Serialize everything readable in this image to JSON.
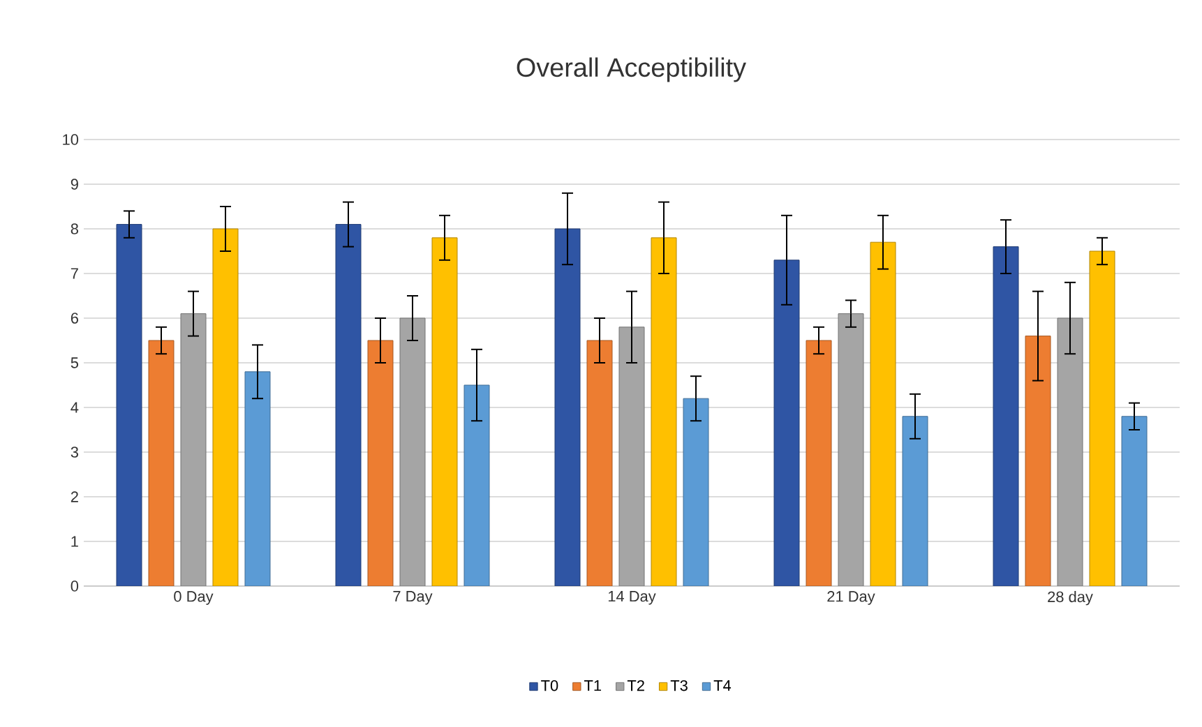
{
  "chart_data": {
    "type": "bar",
    "title": "Overall Acceptibility",
    "categories": [
      "0 Day",
      "7 Day",
      "14 Day",
      "21 Day",
      "28 day"
    ],
    "series": [
      {
        "name": "T0",
        "color": "#2f55a4",
        "values": [
          8.1,
          8.1,
          8.0,
          7.3,
          7.6
        ],
        "errors": [
          0.3,
          0.5,
          0.8,
          1.0,
          0.6
        ]
      },
      {
        "name": "T1",
        "color": "#ed7d31",
        "values": [
          5.5,
          5.5,
          5.5,
          5.5,
          5.6
        ],
        "errors": [
          0.3,
          0.5,
          0.5,
          0.3,
          1.0
        ]
      },
      {
        "name": "T2",
        "color": "#a5a5a5",
        "values": [
          6.1,
          6.0,
          5.8,
          6.1,
          6.0
        ],
        "errors": [
          0.5,
          0.5,
          0.8,
          0.3,
          0.8
        ]
      },
      {
        "name": "T3",
        "color": "#ffc000",
        "values": [
          8.0,
          7.8,
          7.8,
          7.7,
          7.5
        ],
        "errors": [
          0.5,
          0.5,
          0.8,
          0.6,
          0.3
        ]
      },
      {
        "name": "T4",
        "color": "#5b9bd5",
        "values": [
          4.8,
          4.5,
          4.2,
          3.8,
          3.8
        ],
        "errors": [
          0.6,
          0.8,
          0.5,
          0.5,
          0.3
        ]
      }
    ],
    "ylim": [
      0,
      10
    ],
    "yticks": [
      0,
      1,
      2,
      3,
      4,
      5,
      6,
      7,
      8,
      9,
      10
    ],
    "grid": "y",
    "legend": "bottom"
  }
}
